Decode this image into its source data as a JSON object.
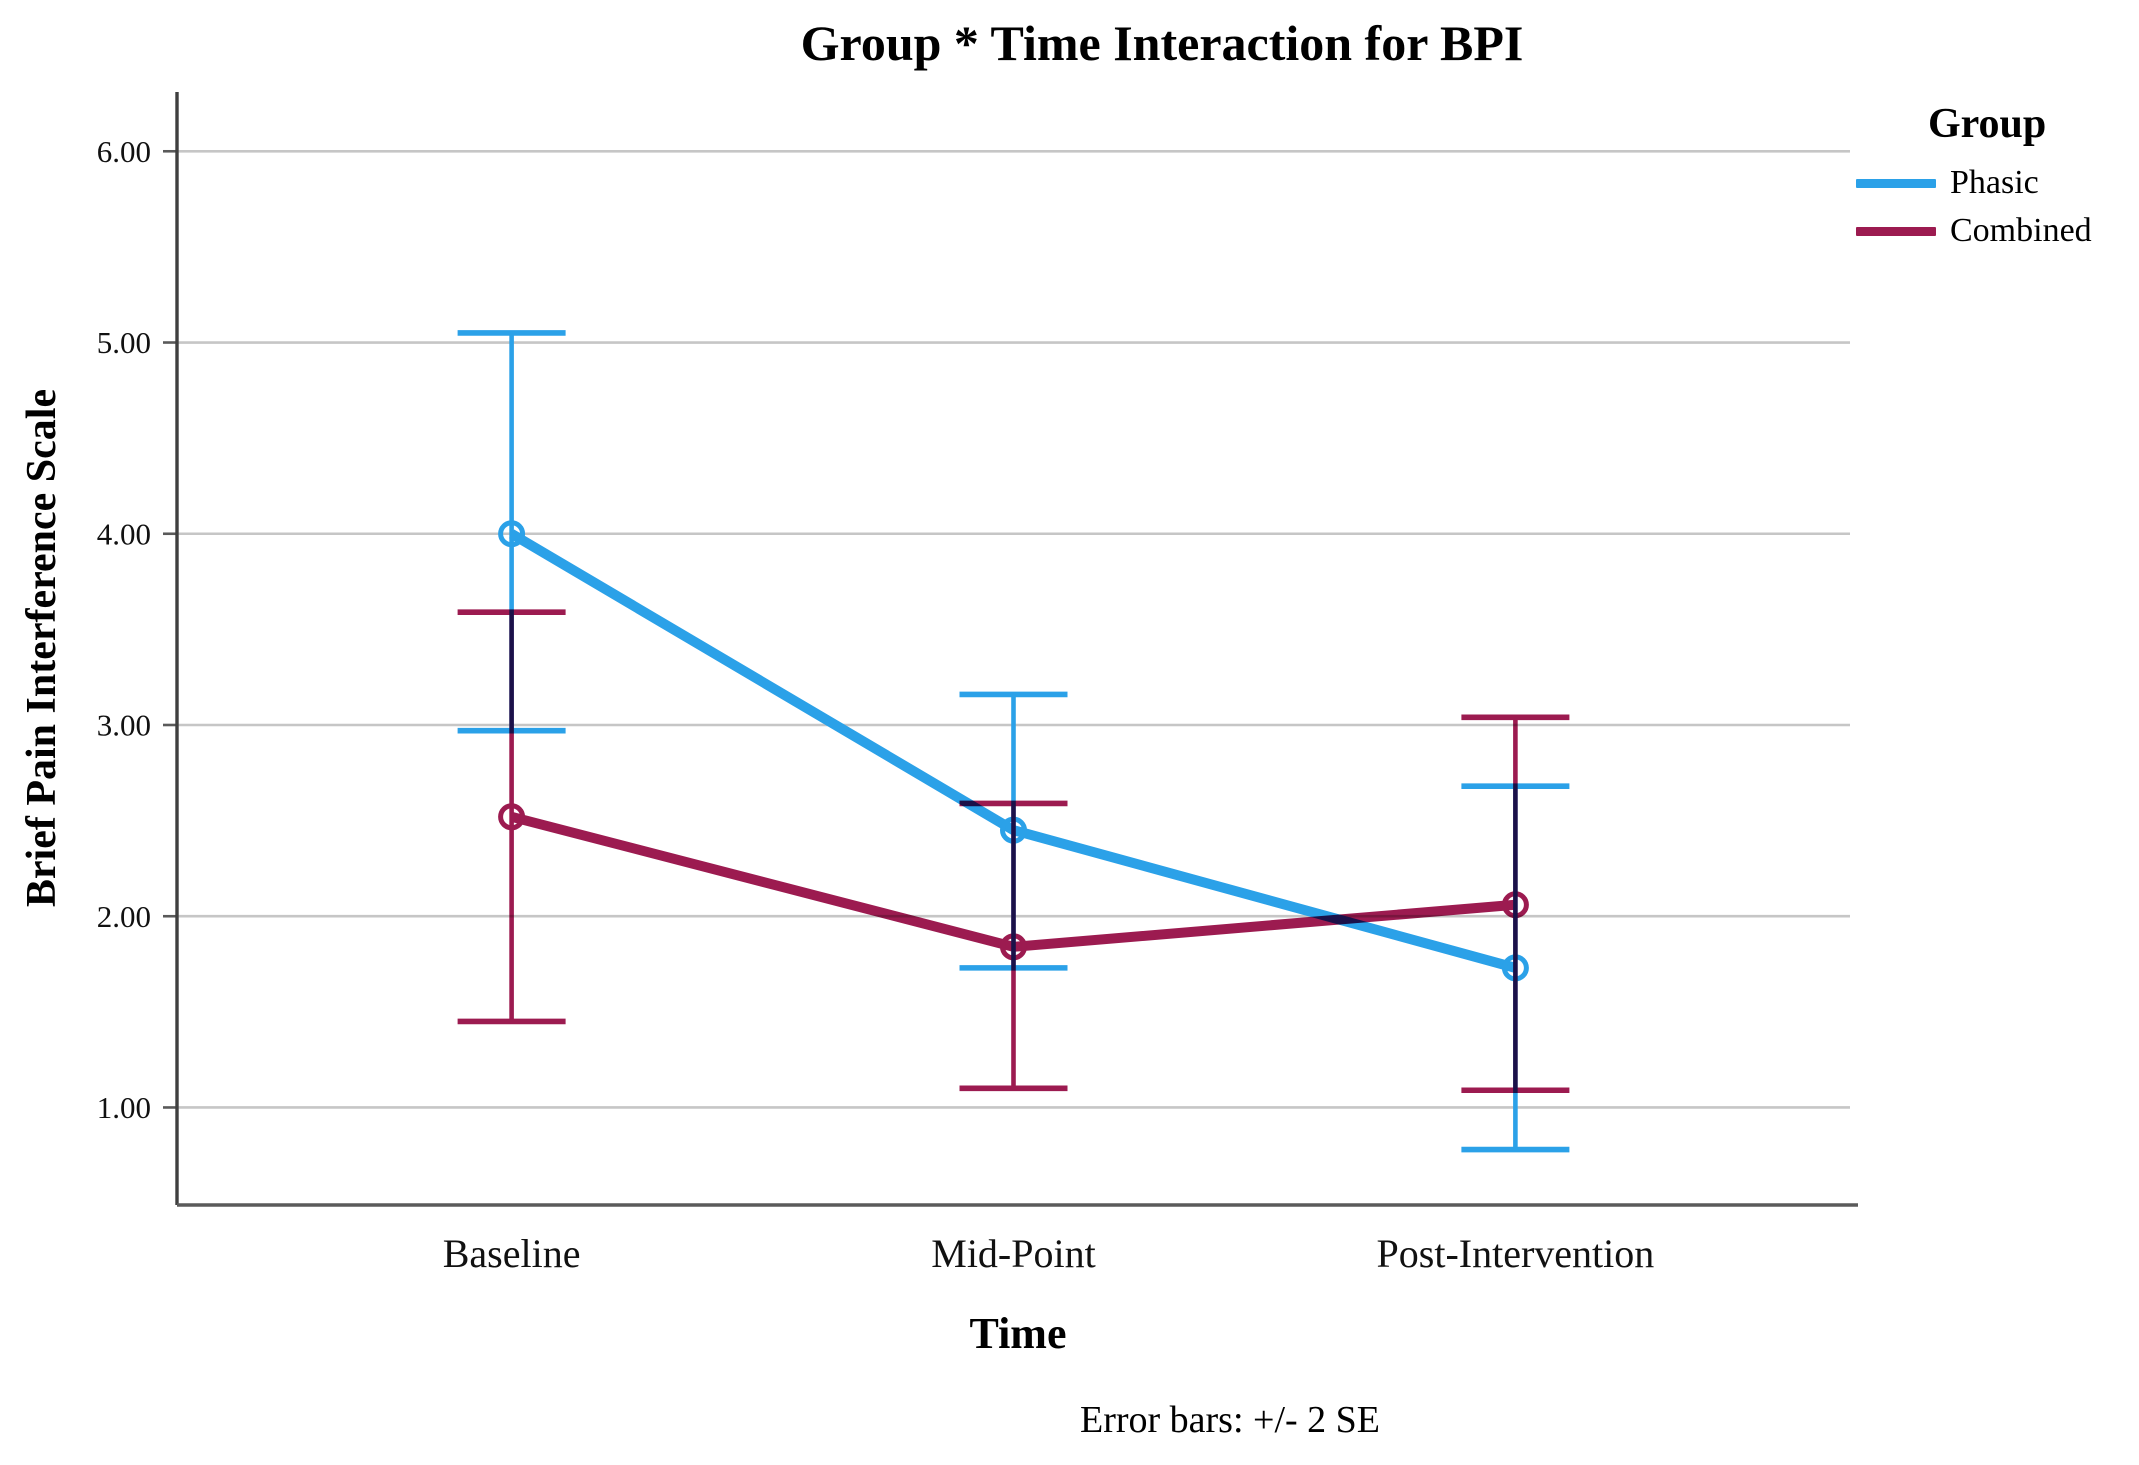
{
  "chart_data": {
    "type": "line",
    "title": "Group * Time Interaction for BPI",
    "xlabel": "Time",
    "ylabel": "Brief Pain Interference Scale",
    "footnote": "Error bars: +/- 2 SE",
    "legend_title": "Group",
    "legend_position": "top-right",
    "grid": true,
    "categories": [
      "Baseline",
      "Mid-Point",
      "Post-Intervention"
    ],
    "y_ticks": [
      "1.00",
      "2.00",
      "3.00",
      "4.00",
      "5.00",
      "6.00"
    ],
    "ylim": [
      0.49,
      6.31
    ],
    "error_bar_note": "+/- 2 SE",
    "series": [
      {
        "name": "Phasic",
        "color": "#2BA1E8",
        "values": [
          4.0,
          2.45,
          1.73
        ],
        "upper": [
          5.05,
          3.16,
          2.68
        ],
        "lower": [
          2.97,
          1.73,
          0.78
        ]
      },
      {
        "name": "Combined",
        "color": "#9C1B50",
        "values": [
          2.52,
          1.84,
          2.06
        ],
        "upper": [
          3.59,
          2.59,
          3.04
        ],
        "lower": [
          1.45,
          1.1,
          1.09
        ]
      }
    ]
  }
}
